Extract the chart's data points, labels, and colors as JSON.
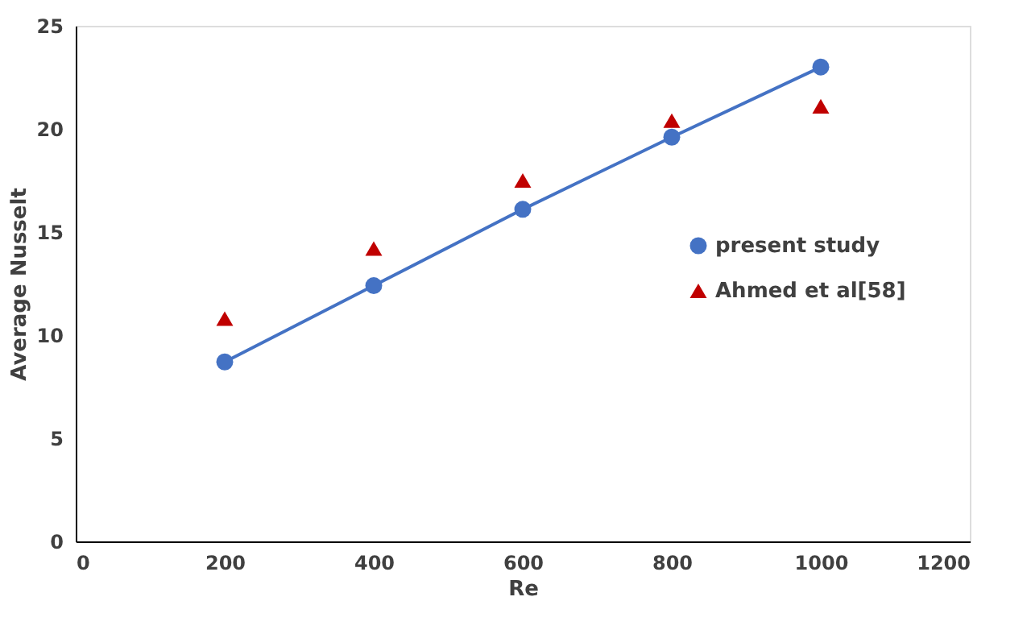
{
  "chart_data": {
    "type": "line",
    "xlabel": "Re",
    "ylabel": "Average Nusselt",
    "x": [
      200,
      400,
      600,
      800,
      1000
    ],
    "series": [
      {
        "name": "present study",
        "type": "line",
        "marker": "circle",
        "color": "#4472c4",
        "values": [
          8.7,
          12.4,
          16.1,
          19.6,
          23.0
        ]
      },
      {
        "name": "Ahmed et al[58]",
        "type": "scatter",
        "marker": "triangle",
        "color": "#c00000",
        "values": [
          10.8,
          14.2,
          17.5,
          20.4,
          21.1
        ]
      }
    ],
    "xlim": [
      0,
      1200
    ],
    "xticks": [
      0,
      200,
      400,
      600,
      800,
      1000,
      1200
    ],
    "ylim": [
      0,
      25
    ],
    "yticks": [
      0,
      5,
      10,
      15,
      20,
      25
    ],
    "grid": false,
    "legend": "right"
  }
}
